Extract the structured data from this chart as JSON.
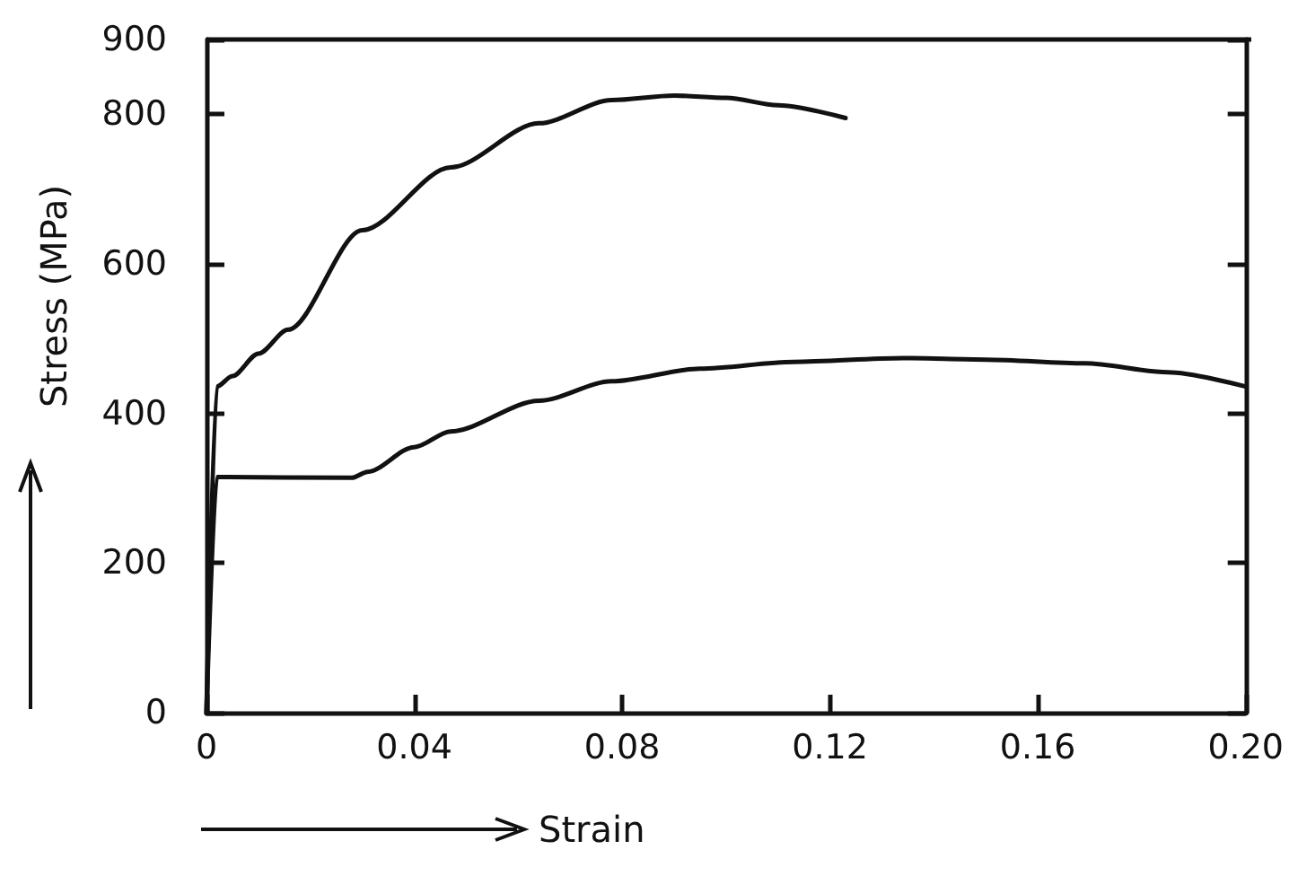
{
  "chart_data": {
    "type": "line",
    "xlabel": "Strain",
    "ylabel": "Stress (MPa)",
    "xlim": [
      0,
      0.2
    ],
    "ylim": [
      0,
      900
    ],
    "xticks": [
      0,
      0.04,
      0.08,
      0.12,
      0.16,
      {
        "value": 0.2,
        "label": "0.20"
      }
    ],
    "yticks": [
      0,
      200,
      400,
      600,
      800,
      900
    ],
    "grid": false,
    "marker": "none",
    "line_style": "solid",
    "series": [
      {
        "color": "#111111",
        "x": [
          0,
          0.002,
          0.005,
          0.01,
          0.0157,
          0.03,
          0.047,
          0.064,
          0.078,
          0.09,
          0.1,
          0.11,
          0.123
        ],
        "values": [
          0,
          436,
          450,
          480,
          512,
          645,
          729,
          788,
          819,
          825,
          822,
          812,
          795
        ]
      },
      {
        "color": "#111111",
        "x": [
          0,
          0.002,
          0.028,
          0.031,
          0.04,
          0.047,
          0.064,
          0.078,
          0.095,
          0.113,
          0.134,
          0.15,
          0.169,
          0.185,
          0.2
        ],
        "values": [
          0,
          315,
          314,
          322,
          355,
          376,
          417,
          443,
          460,
          469,
          474,
          472,
          467,
          455,
          436
        ]
      }
    ]
  }
}
